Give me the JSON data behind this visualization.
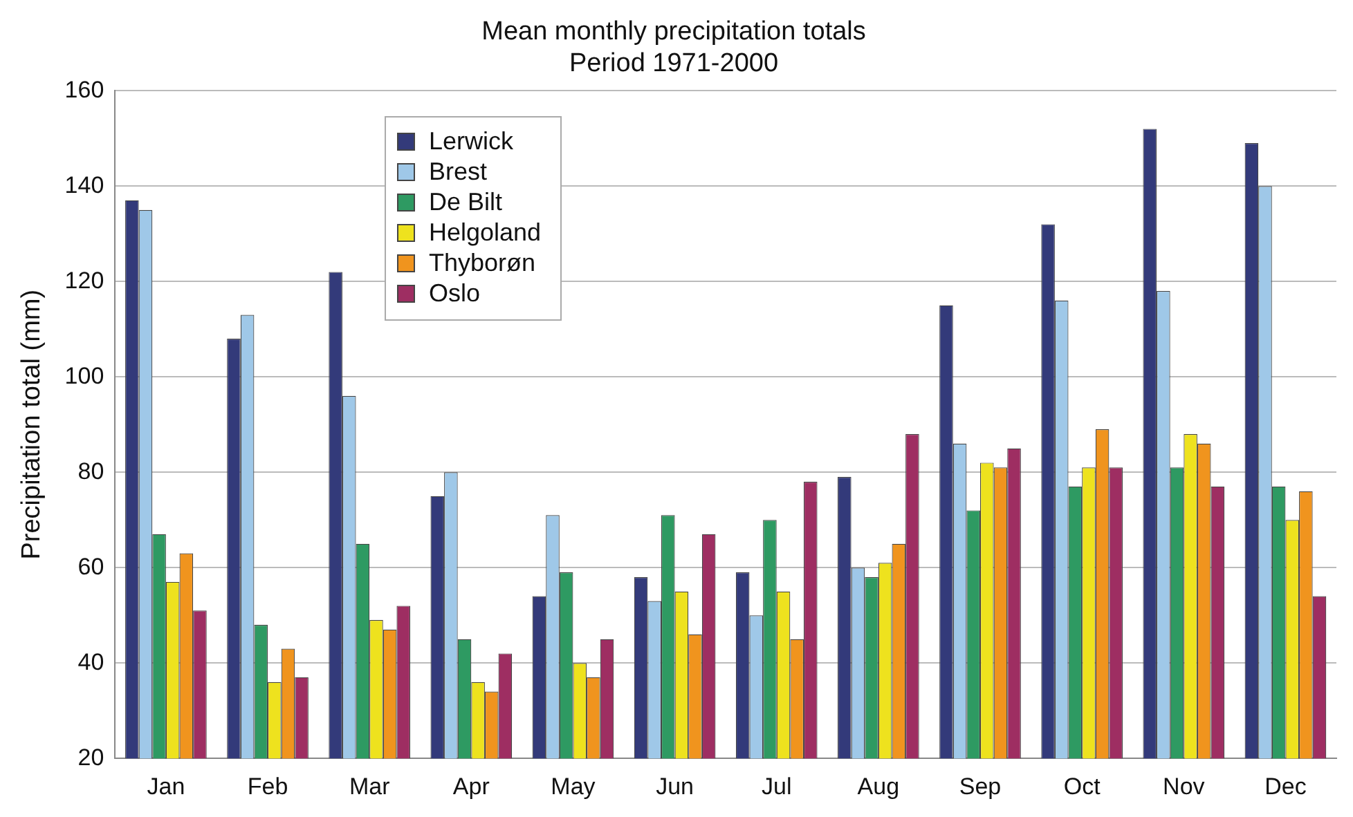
{
  "chart_data": {
    "type": "bar",
    "title": "Mean monthly precipitation totals",
    "subtitle": "Period 1971-2000",
    "ylabel": "Precipitation total (mm)",
    "categories": [
      "Jan",
      "Feb",
      "Mar",
      "Apr",
      "May",
      "Jun",
      "Jul",
      "Aug",
      "Sep",
      "Oct",
      "Nov",
      "Dec"
    ],
    "series": [
      {
        "name": "Lerwick",
        "color": "#333a7a",
        "values": [
          137,
          108,
          122,
          75,
          54,
          58,
          59,
          79,
          115,
          132,
          152,
          149
        ]
      },
      {
        "name": "Brest",
        "color": "#9fc8e8",
        "values": [
          135,
          113,
          96,
          80,
          71,
          53,
          50,
          60,
          86,
          116,
          118,
          140
        ]
      },
      {
        "name": "De Bilt",
        "color": "#2e9a62",
        "values": [
          67,
          48,
          65,
          45,
          59,
          71,
          70,
          58,
          72,
          77,
          81,
          77
        ]
      },
      {
        "name": "Helgoland",
        "color": "#eee21e",
        "values": [
          57,
          36,
          49,
          36,
          40,
          55,
          55,
          61,
          82,
          81,
          88,
          70
        ]
      },
      {
        "name": "Thyborøn",
        "color": "#f0941e",
        "values": [
          63,
          43,
          47,
          34,
          37,
          46,
          45,
          65,
          81,
          89,
          86,
          76
        ]
      },
      {
        "name": "Oslo",
        "color": "#9e2e62",
        "values": [
          51,
          37,
          52,
          42,
          45,
          67,
          78,
          88,
          85,
          81,
          77,
          54
        ]
      }
    ],
    "ylim": [
      20,
      160
    ],
    "yticks": [
      20,
      40,
      60,
      80,
      100,
      120,
      140,
      160
    ],
    "grid": "y",
    "legend": "top left"
  }
}
